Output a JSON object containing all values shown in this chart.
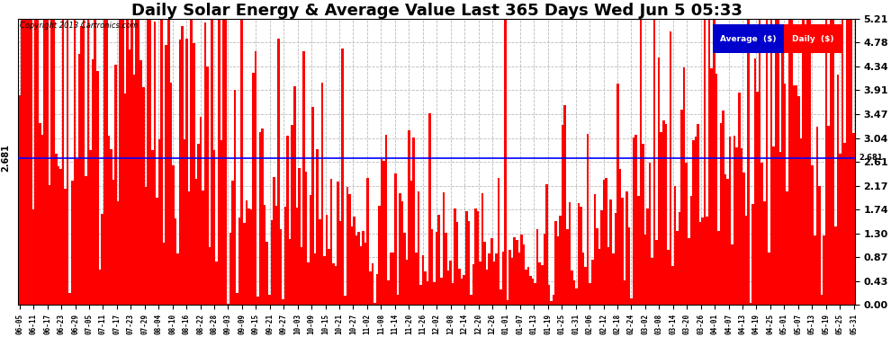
{
  "title": "Daily Solar Energy & Average Value Last 365 Days Wed Jun 5 05:33",
  "copyright": "Copyright 2013 Cartronics.com",
  "bar_color": "#FF0000",
  "average_line_color": "#0000FF",
  "average_value": 2.681,
  "ymin": 0.0,
  "ymax": 5.21,
  "yticks": [
    0.0,
    0.43,
    0.87,
    1.3,
    1.74,
    2.17,
    2.61,
    3.04,
    3.47,
    3.91,
    4.34,
    4.78,
    5.21
  ],
  "background_color": "#FFFFFF",
  "grid_color": "#BBBBBB",
  "legend_avg_bg": "#0000CC",
  "legend_daily_bg": "#FF0000",
  "legend_text_color": "#FFFFFF",
  "title_fontsize": 13,
  "num_bars": 365,
  "x_tick_labels": [
    "06-05",
    "06-11",
    "06-17",
    "06-23",
    "06-29",
    "07-05",
    "07-11",
    "07-17",
    "07-23",
    "07-29",
    "08-04",
    "08-10",
    "08-16",
    "08-22",
    "08-28",
    "09-03",
    "09-09",
    "09-15",
    "09-21",
    "09-27",
    "10-03",
    "10-09",
    "10-15",
    "10-21",
    "10-27",
    "11-02",
    "11-08",
    "11-14",
    "11-20",
    "11-26",
    "12-02",
    "12-08",
    "12-14",
    "12-20",
    "12-26",
    "01-01",
    "01-07",
    "01-13",
    "01-19",
    "01-25",
    "01-31",
    "02-06",
    "02-12",
    "02-18",
    "02-24",
    "03-02",
    "03-08",
    "03-14",
    "03-20",
    "03-26",
    "04-01",
    "04-07",
    "04-13",
    "04-19",
    "04-25",
    "05-01",
    "05-07",
    "05-13",
    "05-19",
    "05-25",
    "05-31"
  ],
  "seed": 12345
}
